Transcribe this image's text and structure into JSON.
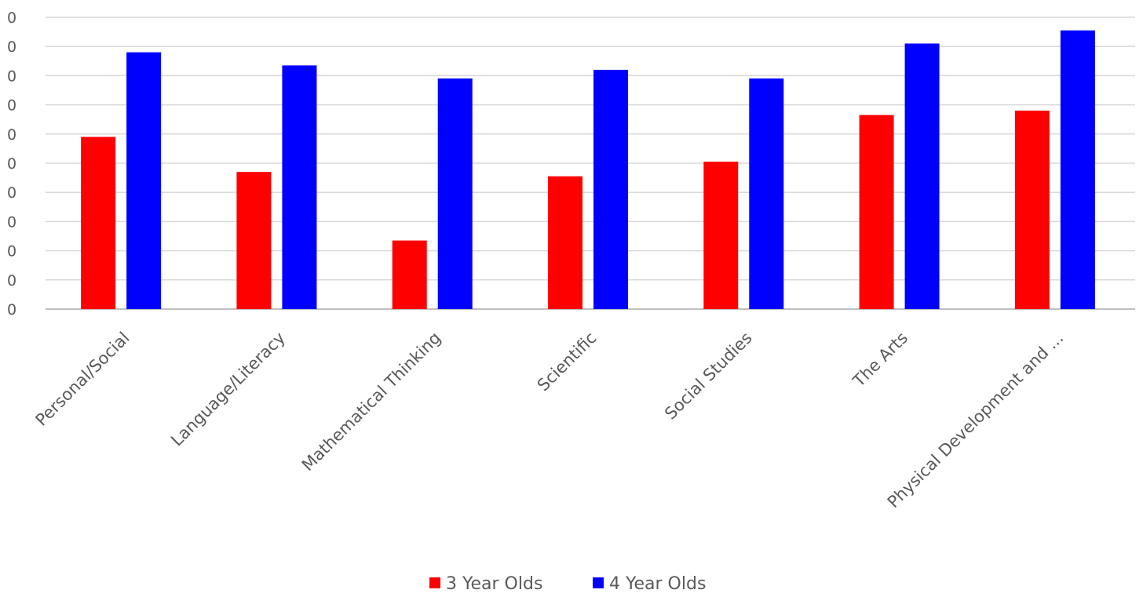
{
  "chart_data": {
    "type": "bar",
    "categories": [
      "Personal/Social",
      "Language/Literacy",
      "Mathematical Thinking",
      "Scientific",
      "Social Studies",
      "The Arts",
      "Physical Development and ..."
    ],
    "y_tick_labels": [
      "0",
      "0",
      "0",
      "0",
      "0",
      "0",
      "0",
      "0",
      "0",
      "0",
      "0"
    ],
    "ylim": [
      0,
      10
    ],
    "grid": true,
    "legend_position": "bottom",
    "series": [
      {
        "name": "3 Year Olds",
        "color": "#ff0000",
        "values": [
          5.9,
          4.7,
          2.35,
          4.55,
          5.05,
          6.65,
          6.8
        ]
      },
      {
        "name": "4 Year Olds",
        "color": "#0000ff",
        "values": [
          8.8,
          8.35,
          7.9,
          8.2,
          7.9,
          9.1,
          9.55
        ]
      }
    ]
  }
}
